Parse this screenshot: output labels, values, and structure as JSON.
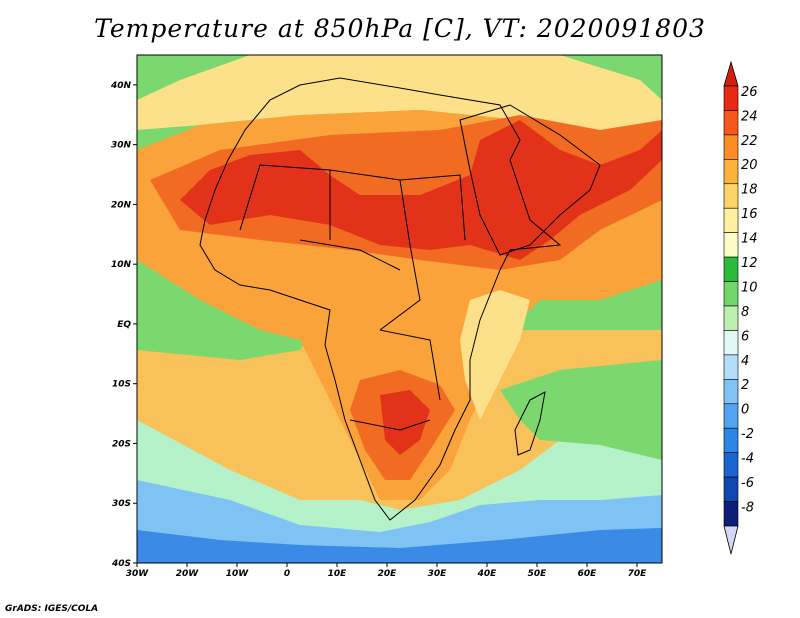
{
  "title": "Temperature at 850hPa [C], VT: 2020091803",
  "credit": "GrADS: IGES/COLA",
  "lat_labels": [
    "40N",
    "30N",
    "20N",
    "10N",
    "EQ",
    "10S",
    "20S",
    "30S",
    "40S"
  ],
  "lon_labels": [
    "30W",
    "20W",
    "10W",
    "0",
    "10E",
    "20E",
    "30E",
    "40E",
    "50E",
    "60E",
    "70E"
  ],
  "map_extent": {
    "lon_min": -30,
    "lon_max": 75,
    "lat_min": -40,
    "lat_max": 45
  },
  "colorbar": {
    "levels": [
      "26",
      "24",
      "22",
      "20",
      "18",
      "16",
      "14",
      "12",
      "10",
      "8",
      "6",
      "4",
      "2",
      "0",
      "-2",
      "-4",
      "-6",
      "-8"
    ],
    "colors": [
      "#e62a13",
      "#f7571f",
      "#fa8d25",
      "#fbb33c",
      "#fdd468",
      "#fff0a0",
      "#fdfbc6",
      "#2bbb3a",
      "#70d86a",
      "#bdf0b0",
      "#e1f8f4",
      "#b4ddfb",
      "#81c2f5",
      "#52a3ef",
      "#2c86e6",
      "#1966cf",
      "#1046b0",
      "#0d1d7a"
    ],
    "top_color": "#d21e0f",
    "bottom_color": "#d6d6f6"
  },
  "fill_colors": {
    "ocean_north": "#7bd86e",
    "ocean_south": "#f8c15a",
    "land": "#f9a33a",
    "hot": "#f26b22",
    "hottest": "#e2331a",
    "mild": "#fde08a",
    "cool": "#b6f2c9",
    "cold": "#7fc3f4",
    "coldest": "#3b8ae6",
    "boundary": "#000000"
  }
}
